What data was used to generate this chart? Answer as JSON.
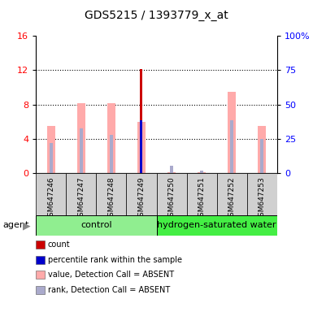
{
  "title": "GDS5215 / 1393779_x_at",
  "samples": [
    "GSM647246",
    "GSM647247",
    "GSM647248",
    "GSM647249",
    "GSM647250",
    "GSM647251",
    "GSM647252",
    "GSM647253"
  ],
  "value_absent": [
    5.5,
    8.2,
    8.2,
    6.0,
    0.15,
    0.1,
    9.5,
    5.5
  ],
  "rank_absent": [
    3.5,
    5.2,
    4.5,
    0.0,
    0.85,
    0.3,
    6.2,
    4.0
  ],
  "count_value": [
    0.0,
    0.0,
    0.0,
    12.1,
    0.0,
    0.0,
    0.0,
    0.0
  ],
  "percentile_rank": [
    0.0,
    0.0,
    0.0,
    6.2,
    0.0,
    0.0,
    0.0,
    0.0
  ],
  "ylim_left": [
    0,
    16
  ],
  "ylim_right": [
    0,
    100
  ],
  "yticks_left": [
    0,
    4,
    8,
    12,
    16
  ],
  "yticks_right": [
    0,
    25,
    50,
    75,
    100
  ],
  "yticklabels_right": [
    "0",
    "25",
    "50",
    "75",
    "100%"
  ],
  "color_count": "#cc0000",
  "color_percentile": "#0000cc",
  "color_value_absent": "#ffaaaa",
  "color_rank_absent": "#aaaacc",
  "control_color": "#90EE90",
  "h2_color": "#44ee44"
}
